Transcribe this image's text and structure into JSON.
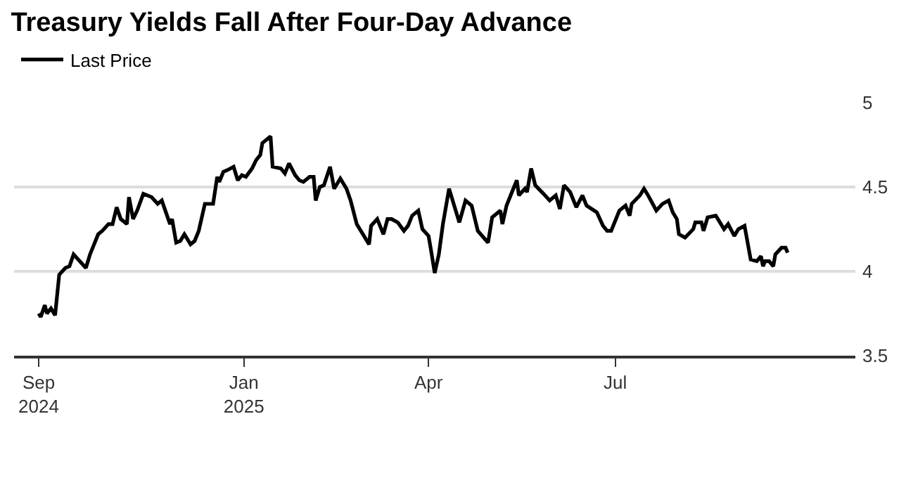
{
  "chart_data": {
    "type": "line",
    "title": "Treasury Yields Fall After Four-Day Advance",
    "x": [
      "2024-09-23",
      "2024-09-24",
      "2024-09-26",
      "2024-09-27",
      "2024-09-29",
      "2024-10-01",
      "2024-10-03",
      "2024-10-06",
      "2024-10-08",
      "2024-10-10",
      "2024-10-13",
      "2024-10-16",
      "2024-10-18",
      "2024-10-20",
      "2024-10-22",
      "2024-10-24",
      "2024-10-27",
      "2024-10-29",
      "2024-10-31",
      "2024-11-02",
      "2024-11-05",
      "2024-11-06",
      "2024-11-08",
      "2024-11-10",
      "2024-11-13",
      "2024-11-17",
      "2024-11-20",
      "2024-11-22",
      "2024-11-26",
      "2024-11-27",
      "2024-11-29",
      "2024-12-01",
      "2024-12-03",
      "2024-12-06",
      "2024-12-08",
      "2024-12-10",
      "2024-12-13",
      "2024-12-17",
      "2024-12-19",
      "2024-12-20",
      "2024-12-22",
      "2024-12-24",
      "2024-12-27",
      "2024-12-29",
      "2024-12-31",
      "2025-01-02",
      "2025-01-05",
      "2025-01-07",
      "2025-01-09",
      "2025-01-10",
      "2025-01-14",
      "2025-01-15",
      "2025-01-19",
      "2025-01-21",
      "2025-01-23",
      "2025-01-26",
      "2025-01-28",
      "2025-01-30",
      "2025-02-02",
      "2025-02-04",
      "2025-02-05",
      "2025-02-07",
      "2025-02-09",
      "2025-02-12",
      "2025-02-14",
      "2025-02-17",
      "2025-02-20",
      "2025-02-22",
      "2025-02-25",
      "2025-02-28",
      "2025-03-03",
      "2025-03-04",
      "2025-03-07",
      "2025-03-10",
      "2025-03-12",
      "2025-03-14",
      "2025-03-17",
      "2025-03-20",
      "2025-03-22",
      "2025-03-24",
      "2025-03-27",
      "2025-03-29",
      "2025-04-01",
      "2025-04-02",
      "2025-04-04",
      "2025-04-06",
      "2025-04-08",
      "2025-04-11",
      "2025-04-16",
      "2025-04-19",
      "2025-04-22",
      "2025-04-25",
      "2025-04-30",
      "2025-05-02",
      "2025-05-06",
      "2025-05-07",
      "2025-05-09",
      "2025-05-12",
      "2025-05-14",
      "2025-05-15",
      "2025-05-18",
      "2025-05-19",
      "2025-05-21",
      "2025-05-23",
      "2025-05-27",
      "2025-05-30",
      "2025-06-02",
      "2025-06-04",
      "2025-06-06",
      "2025-06-09",
      "2025-06-12",
      "2025-06-15",
      "2025-06-17",
      "2025-06-22",
      "2025-06-25",
      "2025-06-27",
      "2025-06-29",
      "2025-07-03",
      "2025-07-06",
      "2025-07-08",
      "2025-07-09",
      "2025-07-13",
      "2025-07-15",
      "2025-07-17",
      "2025-07-21",
      "2025-07-24",
      "2025-07-27",
      "2025-07-29",
      "2025-07-31",
      "2025-08-01",
      "2025-08-04",
      "2025-08-08",
      "2025-08-09",
      "2025-08-12",
      "2025-08-13",
      "2025-08-15",
      "2025-08-19",
      "2025-08-21",
      "2025-08-23",
      "2025-08-25",
      "2025-08-28",
      "2025-08-30",
      "2025-09-02",
      "2025-09-05",
      "2025-09-08",
      "2025-09-10",
      "2025-09-11",
      "2025-09-12",
      "2025-09-14",
      "2025-09-16",
      "2025-09-17",
      "2025-09-20",
      "2025-09-22",
      "2025-09-23"
    ],
    "series": [
      {
        "name": "Last Price",
        "color": "#000000",
        "values": [
          3.75,
          3.73,
          3.8,
          3.75,
          3.78,
          3.74,
          3.98,
          4.02,
          4.03,
          4.1,
          4.06,
          4.02,
          4.1,
          4.16,
          4.22,
          4.24,
          4.28,
          4.28,
          4.38,
          4.31,
          4.28,
          4.44,
          4.31,
          4.36,
          4.46,
          4.44,
          4.4,
          4.42,
          4.28,
          4.31,
          4.17,
          4.18,
          4.22,
          4.16,
          4.18,
          4.24,
          4.4,
          4.4,
          4.56,
          4.53,
          4.59,
          4.6,
          4.62,
          4.54,
          4.57,
          4.56,
          4.61,
          4.66,
          4.69,
          4.76,
          4.8,
          4.62,
          4.61,
          4.58,
          4.64,
          4.57,
          4.54,
          4.53,
          4.56,
          4.56,
          4.42,
          4.5,
          4.51,
          4.62,
          4.49,
          4.55,
          4.49,
          4.42,
          4.28,
          4.22,
          4.16,
          4.27,
          4.31,
          4.22,
          4.31,
          4.31,
          4.29,
          4.24,
          4.27,
          4.33,
          4.36,
          4.25,
          4.21,
          4.14,
          3.99,
          4.1,
          4.28,
          4.49,
          4.29,
          4.42,
          4.39,
          4.24,
          4.17,
          4.32,
          4.36,
          4.28,
          4.39,
          4.48,
          4.54,
          4.45,
          4.49,
          4.47,
          4.61,
          4.51,
          4.46,
          4.42,
          4.45,
          4.37,
          4.51,
          4.47,
          4.38,
          4.45,
          4.39,
          4.35,
          4.27,
          4.24,
          4.24,
          4.36,
          4.39,
          4.33,
          4.4,
          4.45,
          4.49,
          4.45,
          4.36,
          4.4,
          4.42,
          4.35,
          4.31,
          4.22,
          4.2,
          4.25,
          4.29,
          4.29,
          4.24,
          4.32,
          4.33,
          4.29,
          4.25,
          4.28,
          4.21,
          4.25,
          4.27,
          4.07,
          4.06,
          4.09,
          4.03,
          4.06,
          4.06,
          4.03,
          4.1,
          4.14,
          4.14,
          4.11
        ]
      }
    ],
    "xlim": [
      "2024-09-11",
      "2025-10-26"
    ],
    "xticks": [
      {
        "value": "2024-09-23",
        "label": "Sep\n2024"
      },
      {
        "value": "2025-01-01",
        "label": "Jan\n2025"
      },
      {
        "value": "2025-04-01",
        "label": "Apr"
      },
      {
        "value": "2025-07-01",
        "label": "Jul"
      }
    ],
    "ylim": [
      3.5,
      5
    ],
    "yticks": [
      3.5,
      4,
      4.5,
      5
    ],
    "grid": "y",
    "legend": "top left",
    "marker": "none",
    "line_style": "solid"
  }
}
